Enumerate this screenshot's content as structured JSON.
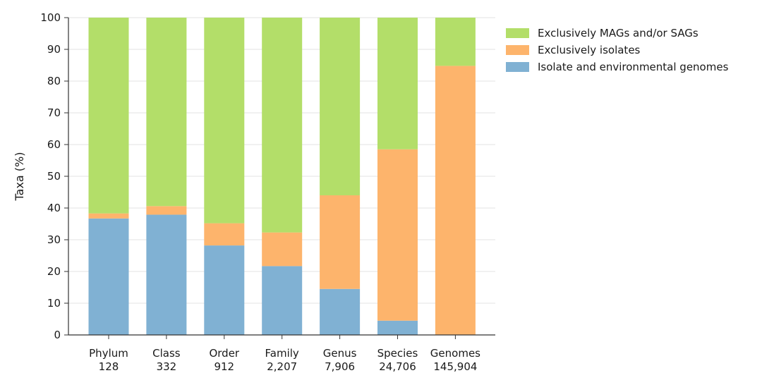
{
  "chart_data": {
    "type": "bar",
    "stacked": true,
    "title": "",
    "xlabel": "",
    "ylabel": "Taxa (%)",
    "ylim": [
      0,
      100
    ],
    "yticks": [
      0,
      10,
      20,
      30,
      40,
      50,
      60,
      70,
      80,
      90,
      100
    ],
    "grid": true,
    "legend_position": "top-right",
    "categories": [
      "Phylum",
      "Class",
      "Order",
      "Family",
      "Genus",
      "Species",
      "Genomes"
    ],
    "counts": [
      "128",
      "332",
      "912",
      "2,207",
      "7,906",
      "24,706",
      "145,904"
    ],
    "series": [
      {
        "name": "Isolate and environmental genomes",
        "color": "#80b1d3",
        "values": [
          36.7,
          37.9,
          28.2,
          21.7,
          14.5,
          4.5,
          0
        ]
      },
      {
        "name": "Exclusively isolates",
        "color": "#fdb46c",
        "values": [
          1.6,
          2.7,
          7.0,
          10.6,
          29.5,
          54.0,
          84.8
        ]
      },
      {
        "name": "Exclusively MAGs and/or SAGs",
        "color": "#b3de69",
        "values": [
          61.7,
          59.4,
          64.8,
          67.7,
          56.0,
          41.5,
          15.2
        ]
      }
    ],
    "legend_order": [
      2,
      1,
      0
    ]
  }
}
